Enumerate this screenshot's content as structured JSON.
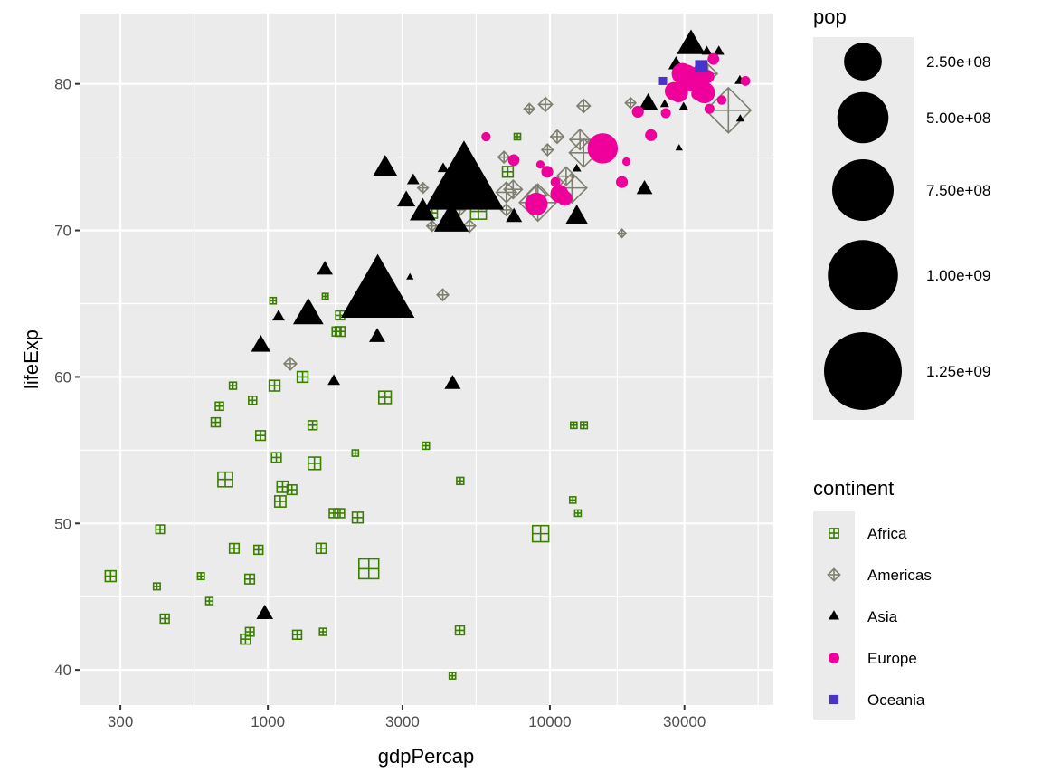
{
  "chart_data": {
    "type": "scatter",
    "title": "",
    "xlabel": "gdpPercap",
    "ylabel": "lifeExp",
    "x_scale": "log10",
    "xlim": [
      215,
      62000
    ],
    "ylim": [
      37.6,
      84.8
    ],
    "x_ticks": [
      300,
      1000,
      3000,
      10000,
      30000
    ],
    "x_tick_labels": [
      "300",
      "1000",
      "3000",
      "10000",
      "30000"
    ],
    "y_ticks": [
      40,
      50,
      60,
      70,
      80
    ],
    "y_tick_labels": [
      "40",
      "50",
      "60",
      "70",
      "80"
    ],
    "grid": true,
    "size_legend": {
      "title": "pop",
      "position": "right",
      "values": [
        250000000,
        500000000,
        750000000,
        1000000000,
        1250000000
      ],
      "labels": [
        "2.50e+08",
        "5.00e+08",
        "7.50e+08",
        "1.00e+09",
        "1.25e+09"
      ]
    },
    "shape_legend": {
      "title": "continent",
      "position": "right",
      "entries": [
        {
          "name": "Africa",
          "shape": "square-plus",
          "color": "#3b7f00"
        },
        {
          "name": "Americas",
          "shape": "diamond-plus",
          "color": "#7f7f6f"
        },
        {
          "name": "Asia",
          "shape": "triangle",
          "color": "#000000"
        },
        {
          "name": "Europe",
          "shape": "circle",
          "color": "#f0009b"
        },
        {
          "name": "Oceania",
          "shape": "square",
          "color": "#4b32c8"
        }
      ]
    },
    "series": [
      {
        "name": "Africa",
        "points": [
          [
            277,
            46.4,
            12400000
          ],
          [
            415,
            49.6,
            5000000
          ],
          [
            404,
            45.7,
            1500000
          ],
          [
            431,
            43.5,
            6000000
          ],
          [
            579,
            46.4,
            1500000
          ],
          [
            620,
            44.7,
            2000000
          ],
          [
            653,
            56.9,
            6000000
          ],
          [
            673,
            58.0,
            4000000
          ],
          [
            706,
            53.0,
            33000000
          ],
          [
            760,
            48.3,
            8000000
          ],
          [
            752,
            59.4,
            2000000
          ],
          [
            833,
            42.1,
            9000000
          ],
          [
            863,
            42.6,
            5000000
          ],
          [
            862,
            46.2,
            8000000
          ],
          [
            883,
            58.4,
            4000000
          ],
          [
            926,
            48.2,
            6000000
          ],
          [
            942,
            56.0,
            8000000
          ],
          [
            1043,
            65.2,
            1000000
          ],
          [
            1056,
            59.4,
            12000000
          ],
          [
            1072,
            54.5,
            8000000
          ],
          [
            1107,
            51.5,
            14000000
          ],
          [
            1128,
            52.5,
            14000000
          ],
          [
            1217,
            52.3,
            8000000
          ],
          [
            1270,
            42.4,
            6000000
          ],
          [
            1328,
            60.0,
            12000000
          ],
          [
            1441,
            56.7,
            6000000
          ],
          [
            1463,
            54.1,
            20000000
          ],
          [
            1545,
            48.3,
            9000000
          ],
          [
            1569,
            42.6,
            2000000
          ],
          [
            1598,
            65.5,
            500000
          ],
          [
            1712,
            50.7,
            6000000
          ],
          [
            1803,
            63.1,
            8000000
          ],
          [
            1753,
            63.1,
            6000000
          ],
          [
            1804,
            64.2,
            6000000
          ],
          [
            1803,
            50.7,
            6000000
          ],
          [
            2042,
            54.8,
            1000000
          ],
          [
            2082,
            50.4,
            12000000
          ],
          [
            2280,
            46.9,
            76000000
          ],
          [
            2602,
            58.6,
            20000000
          ],
          [
            3632,
            55.3,
            2000000
          ],
          [
            3820,
            71.2,
            12000000
          ],
          [
            4513,
            39.6,
            1000000
          ],
          [
            4797,
            42.7,
            6000000
          ],
          [
            4811,
            52.9,
            2000000
          ],
          [
            5581,
            71.3,
            40000000
          ],
          [
            7093,
            74.0,
            12000000
          ],
          [
            7670,
            76.4,
            1000000
          ],
          [
            9270,
            49.3,
            44000000
          ],
          [
            12057,
            51.6,
            1000000
          ],
          [
            12154,
            56.7,
            1000000
          ],
          [
            12570,
            50.7,
            1000000
          ],
          [
            13206,
            56.7,
            1500000
          ]
        ]
      },
      {
        "name": "Americas",
        "points": [
          [
            1201,
            60.9,
            8500000
          ],
          [
            3548,
            72.9,
            4000000
          ],
          [
            3820,
            70.3,
            4000000
          ],
          [
            4172,
            65.6,
            6000000
          ],
          [
            4798,
            71.4,
            5000000
          ],
          [
            5186,
            70.3,
            8000000
          ],
          [
            5728,
            71.9,
            12000000
          ],
          [
            6025,
            72.4,
            12000000
          ],
          [
            6873,
            75.0,
            6000000
          ],
          [
            7006,
            72.6,
            40000000
          ],
          [
            7008,
            71.4,
            6000000
          ],
          [
            7408,
            72.8,
            30000000
          ],
          [
            8948,
            72.4,
            44000000
          ],
          [
            9065,
            71.9,
            190000000
          ],
          [
            8458,
            78.3,
            4000000
          ],
          [
            9645,
            78.6,
            12000000
          ],
          [
            9809,
            75.5,
            6000000
          ],
          [
            10611,
            76.4,
            10000000
          ],
          [
            11415,
            73.7,
            30000000
          ],
          [
            11977,
            72.9,
            110000000
          ],
          [
            12779,
            76.2,
            40000000
          ],
          [
            13172,
            75.3,
            100000000
          ],
          [
            13171,
            78.5,
            10000000
          ],
          [
            18009,
            69.8,
            1000000
          ],
          [
            19328,
            78.7,
            4000000
          ],
          [
            36319,
            80.7,
            33000000
          ],
          [
            42952,
            78.2,
            301000000
          ]
        ]
      },
      {
        "name": "Asia",
        "points": [
          [
            975,
            43.8,
            31000000
          ],
          [
            944,
            62.1,
            47000000
          ],
          [
            1091,
            64.1,
            12000000
          ],
          [
            1391,
            64.2,
            150000000
          ],
          [
            1593,
            67.3,
            26000000
          ],
          [
            1714,
            59.7,
            12000000
          ],
          [
            2452,
            65.5,
            1110000000
          ],
          [
            2606,
            74.2,
            85000000
          ],
          [
            2442,
            62.7,
            28000000
          ],
          [
            3095,
            72.0,
            40000000
          ],
          [
            3190,
            66.8,
            1000000
          ],
          [
            3276,
            73.4,
            12000000
          ],
          [
            3541,
            71.2,
            100000000
          ],
          [
            4185,
            74.2,
            8000000
          ],
          [
            4471,
            70.6,
            200000000
          ],
          [
            4959,
            73.0,
            1320000000
          ],
          [
            4519,
            59.5,
            28000000
          ],
          [
            7458,
            70.9,
            28000000
          ],
          [
            10461,
            72.4,
            2000000
          ],
          [
            12452,
            74.2,
            3000000
          ],
          [
            12452,
            70.9,
            65000000
          ],
          [
            21655,
            72.8,
            27000000
          ],
          [
            22316,
            78.6,
            48000000
          ],
          [
            25523,
            78.6,
            3000000
          ],
          [
            28718,
            75.6,
            1000000
          ],
          [
            29796,
            78.4,
            4000000
          ],
          [
            31656,
            82.6,
            127000000
          ],
          [
            36000,
            82.2,
            6000000
          ],
          [
            47143,
            80.2,
            6000000
          ],
          [
            47307,
            77.6,
            2000000
          ],
          [
            39724,
            82.2,
            7000000
          ],
          [
            28000,
            81.3,
            23000000
          ]
        ]
      },
      {
        "name": "Europe",
        "points": [
          [
            5937,
            76.4,
            3600000
          ],
          [
            7446,
            74.8,
            9000000
          ],
          [
            9254,
            74.5,
            2000000
          ],
          [
            9786,
            74.0,
            10000000
          ],
          [
            8948,
            71.8,
            71000000
          ],
          [
            10808,
            72.5,
            38000000
          ],
          [
            10461,
            73.3,
            4500000
          ],
          [
            11295,
            72.2,
            22000000
          ],
          [
            15390,
            75.6,
            148000000
          ],
          [
            18008,
            73.3,
            10000000
          ],
          [
            18678,
            74.7,
            2000000
          ],
          [
            20509,
            78.1,
            10000000
          ],
          [
            22833,
            76.5,
            10000000
          ],
          [
            25768,
            78.0,
            5000000
          ],
          [
            27538,
            79.5,
            40000000
          ],
          [
            28569,
            79.4,
            45000000
          ],
          [
            29479,
            80.7,
            60000000
          ],
          [
            30470,
            80.5,
            82000000
          ],
          [
            32170,
            80.2,
            60000000
          ],
          [
            33207,
            79.3,
            8000000
          ],
          [
            33692,
            80.9,
            9000000
          ],
          [
            35278,
            79.4,
            60000000
          ],
          [
            36180,
            80.5,
            16000000
          ],
          [
            33860,
            79.8,
            10000000
          ],
          [
            36797,
            78.3,
            5000000
          ],
          [
            40676,
            78.9,
            4000000
          ],
          [
            38000,
            81.7,
            9000000
          ],
          [
            49357,
            80.2,
            4500000
          ],
          [
            31000,
            80.9,
            7000000
          ],
          [
            32000,
            79.8,
            5000000
          ]
        ]
      },
      {
        "name": "Oceania",
        "points": [
          [
            25185,
            80.2,
            4100000
          ],
          [
            34435,
            81.2,
            20400000
          ]
        ]
      }
    ]
  }
}
